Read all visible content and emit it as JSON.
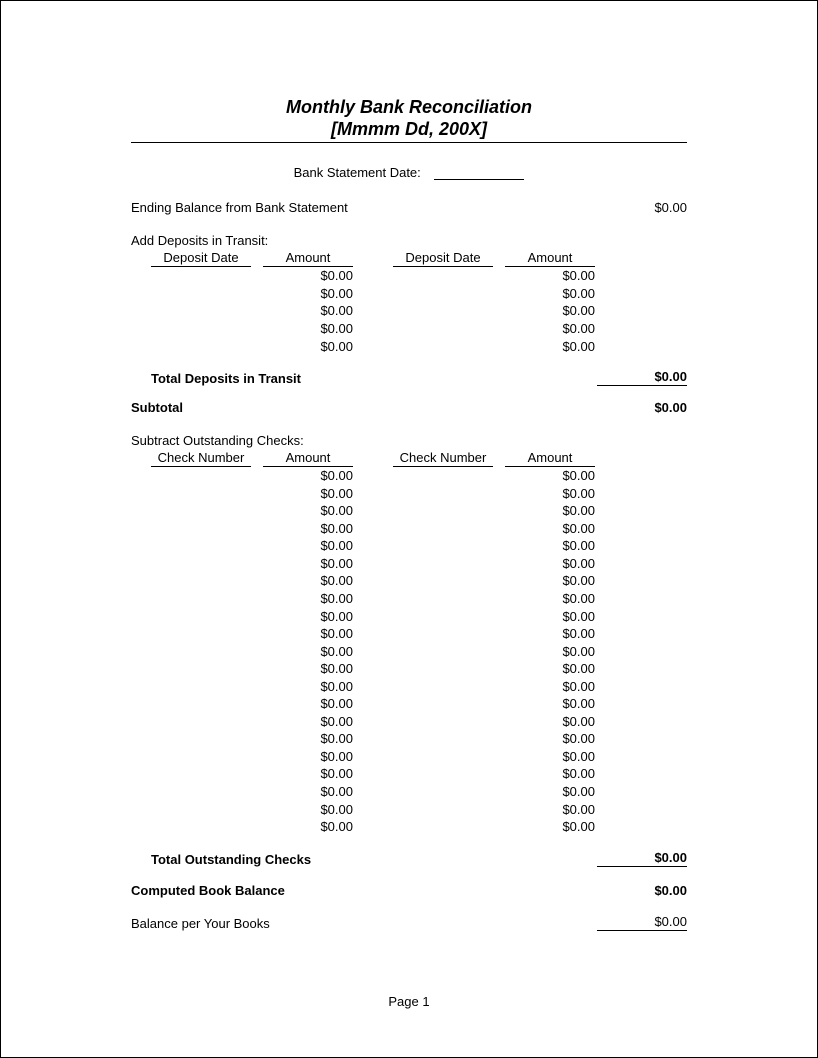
{
  "title": "Monthly Bank Reconciliation",
  "subtitle": "[Mmmm Dd, 200X]",
  "statement_date_label": "Bank Statement Date:",
  "ending_balance": {
    "label": "Ending Balance from Bank Statement",
    "value": "$0.00"
  },
  "deposits": {
    "header": "Add Deposits in Transit:",
    "col_left_h1": "Deposit Date",
    "col_h2": "Amount",
    "col_right_h1": "Deposit Date",
    "rows_left": [
      "$0.00",
      "$0.00",
      "$0.00",
      "$0.00",
      "$0.00"
    ],
    "rows_right": [
      "$0.00",
      "$0.00",
      "$0.00",
      "$0.00",
      "$0.00"
    ],
    "total_label": "Total Deposits in Transit",
    "total_value": "$0.00"
  },
  "subtotal": {
    "label": "Subtotal",
    "value": "$0.00"
  },
  "checks": {
    "header": "Subtract Outstanding Checks:",
    "col_left_h1": "Check Number",
    "col_h2": "Amount",
    "col_right_h1": "Check Number",
    "rows_left": [
      "$0.00",
      "$0.00",
      "$0.00",
      "$0.00",
      "$0.00",
      "$0.00",
      "$0.00",
      "$0.00",
      "$0.00",
      "$0.00",
      "$0.00",
      "$0.00",
      "$0.00",
      "$0.00",
      "$0.00",
      "$0.00",
      "$0.00",
      "$0.00",
      "$0.00",
      "$0.00",
      "$0.00"
    ],
    "rows_right": [
      "$0.00",
      "$0.00",
      "$0.00",
      "$0.00",
      "$0.00",
      "$0.00",
      "$0.00",
      "$0.00",
      "$0.00",
      "$0.00",
      "$0.00",
      "$0.00",
      "$0.00",
      "$0.00",
      "$0.00",
      "$0.00",
      "$0.00",
      "$0.00",
      "$0.00",
      "$0.00",
      "$0.00"
    ],
    "total_label": "Total Outstanding Checks",
    "total_value": "$0.00"
  },
  "computed": {
    "label": "Computed Book Balance",
    "value": "$0.00"
  },
  "balance_books": {
    "label": "Balance per Your Books",
    "value": "$0.00"
  },
  "footer": "Page 1"
}
